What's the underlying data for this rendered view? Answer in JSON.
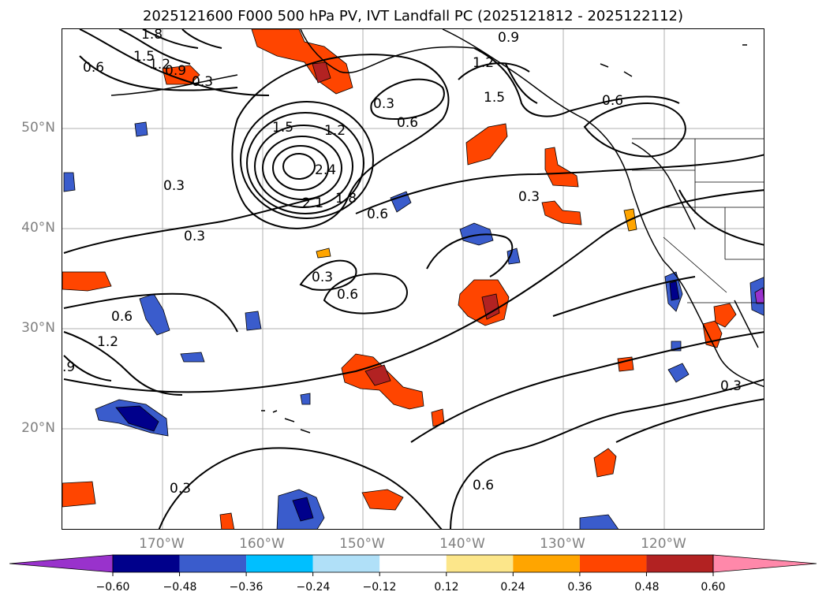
{
  "title": "2025121600 F000 500 hPa PV, IVT Landfall PC (2025121812 - 2025122112)",
  "lat_labels": [
    "50°N",
    "40°N",
    "30°N",
    "20°N"
  ],
  "lon_labels": [
    "170°W",
    "160°W",
    "150°W",
    "140°W",
    "130°W",
    "120°W"
  ],
  "contour_labels": [
    "1.8",
    "1.5",
    "1.2",
    "0.9",
    "0.6",
    "0.3",
    "0.3",
    "0.6",
    "1.2",
    "1.5",
    "0.9",
    "0.6",
    "1.5",
    "1.2",
    "2.4",
    "2.1",
    "1.8",
    "0.6",
    "0.3",
    "0.3",
    "0.3",
    "0.3",
    "0.6",
    "0.6",
    "1.2",
    ".9",
    "0.3",
    "0.6",
    "0.3"
  ],
  "colorbar": {
    "ticks": [
      "−0.60",
      "−0.48",
      "−0.36",
      "−0.24",
      "−0.12",
      "0.12",
      "0.24",
      "0.36",
      "0.48",
      "0.60"
    ],
    "colors": [
      "#9932cc",
      "#00008b",
      "#3a5ccc",
      "#00bfff",
      "#b0e0f8",
      "#ffffff",
      "#fce68a",
      "#ffa500",
      "#ff4500",
      "#b22222",
      "#ff88aa"
    ]
  }
}
